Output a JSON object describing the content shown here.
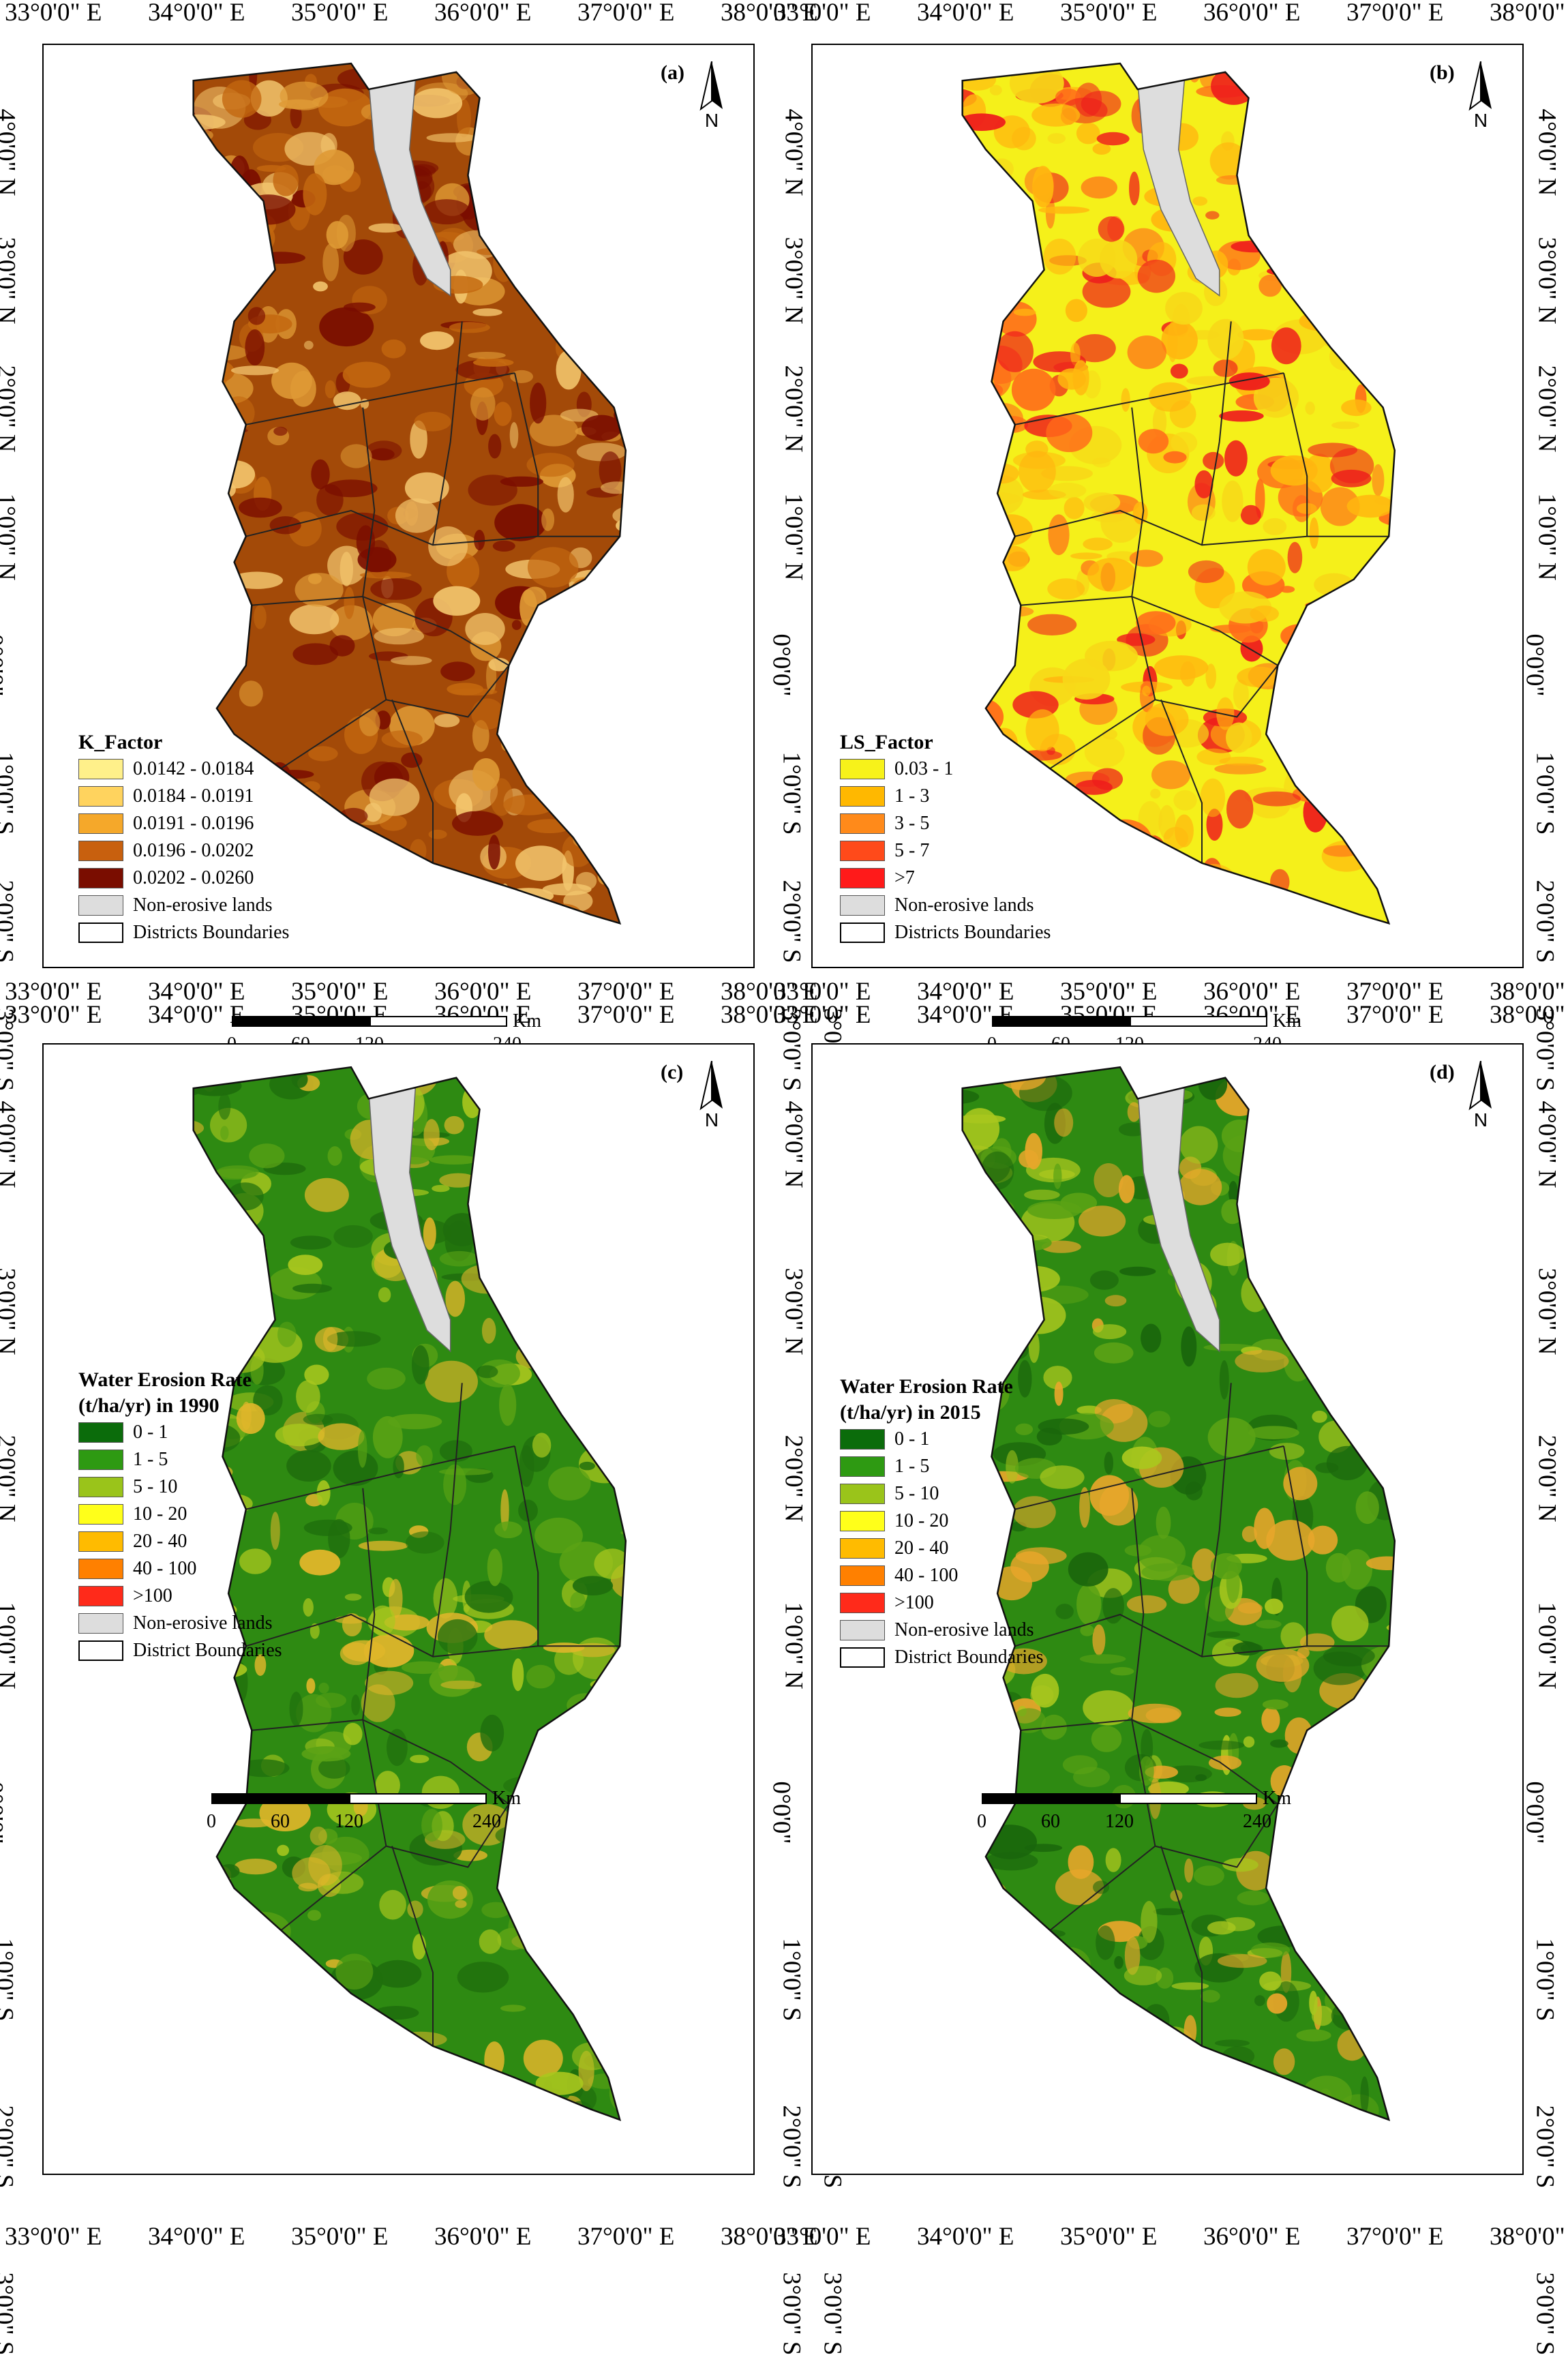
{
  "axis": {
    "lon_labels": [
      "33°0'0\" E",
      "34°0'0\" E",
      "35°0'0\" E",
      "36°0'0\" E",
      "37°0'0\" E",
      "38°0'0\" E"
    ],
    "lat_labels": [
      "4°0'0\" N",
      "3°0'0\" N",
      "2°0'0\" N",
      "1°0'0\" N",
      "0°0'0\"",
      "1°0'0\" S",
      "2°0'0\" S",
      "3°0'0\" S"
    ]
  },
  "north_label": "N",
  "scale": {
    "unit": "Km",
    "ticks": [
      "0",
      "60",
      "120",
      "240"
    ]
  },
  "panels": [
    {
      "letter": "(a)",
      "palette": [
        "#a34a08",
        "#c3670f",
        "#df9a35",
        "#f2c46c",
        "#7a0d00"
      ],
      "legend_title": [
        "K_Factor"
      ],
      "legend": [
        {
          "label": "0.0142 - 0.0184",
          "color": "#fff08a"
        },
        {
          "label": "0.0184 - 0.0191",
          "color": "#ffd35e"
        },
        {
          "label": "0.0191 - 0.0196",
          "color": "#f5a82a"
        },
        {
          "label": "0.0196 - 0.0202",
          "color": "#c8600e"
        },
        {
          "label": "0.0202 - 0.0260",
          "color": "#7a0d00"
        },
        {
          "label": "Non-erosive lands",
          "color": "#dddddd"
        },
        {
          "label": "Districts Boundaries",
          "color": "#ffffff"
        }
      ]
    },
    {
      "letter": "(b)",
      "palette": [
        "#f5f01a",
        "#f7d818",
        "#ffb70f",
        "#ff6a1a",
        "#ee1c1c"
      ],
      "legend_title": [
        "LS_Factor"
      ],
      "legend": [
        {
          "label": "0.03 - 1",
          "color": "#f7f21a"
        },
        {
          "label": "1 - 3",
          "color": "#ffb800"
        },
        {
          "label": "3 - 5",
          "color": "#ff8a1a"
        },
        {
          "label": "5 - 7",
          "color": "#ff4a1a"
        },
        {
          "label": ">7",
          "color": "#ff1a1a"
        },
        {
          "label": "Non-erosive lands",
          "color": "#dddddd"
        },
        {
          "label": "Districts Boundaries",
          "color": "#ffffff"
        }
      ]
    },
    {
      "letter": "(c)",
      "palette": [
        "#2e8a12",
        "#1f6e0d",
        "#5aa215",
        "#a9c71e",
        "#e0b62a"
      ],
      "legend_title": [
        "Water Erosion Rate",
        "(t/ha/yr) in 1990"
      ],
      "legend": [
        {
          "label": "0 - 1",
          "color": "#0b6c0b"
        },
        {
          "label": "1 - 5",
          "color": "#2e9a12"
        },
        {
          "label": "5 - 10",
          "color": "#9ac41a"
        },
        {
          "label": "10 - 20",
          "color": "#ffff1a"
        },
        {
          "label": "20 - 40",
          "color": "#ffbb00"
        },
        {
          "label": "40 - 100",
          "color": "#ff8000"
        },
        {
          "label": ">100",
          "color": "#ff2a1a"
        },
        {
          "label": "Non-erosive lands",
          "color": "#dddddd"
        },
        {
          "label": "District Boundaries",
          "color": "#ffffff"
        }
      ]
    },
    {
      "letter": "(d)",
      "palette": [
        "#2e8a12",
        "#1a660c",
        "#5aa215",
        "#a9c71e",
        "#e7a62a"
      ],
      "legend_title": [
        "Water Erosion Rate",
        "(t/ha/yr) in 2015"
      ],
      "legend": [
        {
          "label": "0 - 1",
          "color": "#0b6c0b"
        },
        {
          "label": "1 - 5",
          "color": "#2e9a12"
        },
        {
          "label": "5 - 10",
          "color": "#9ac41a"
        },
        {
          "label": "10 - 20",
          "color": "#ffff1a"
        },
        {
          "label": "20 - 40",
          "color": "#ffbb00"
        },
        {
          "label": "40 - 100",
          "color": "#ff8000"
        },
        {
          "label": ">100",
          "color": "#ff2a1a"
        },
        {
          "label": "Non-erosive lands",
          "color": "#dddddd"
        },
        {
          "label": "District Boundaries",
          "color": "#ffffff"
        }
      ]
    }
  ]
}
